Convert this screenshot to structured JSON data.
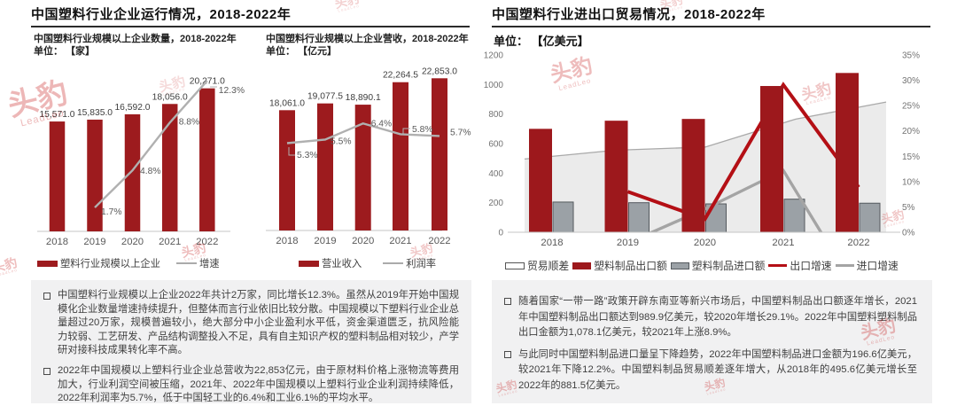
{
  "left_panel": {
    "title": "中国塑料行业企业运行情况，2018-2022年",
    "bullets": [
      "中国塑料行业规模以上企业2022年共计2万家，同比增长12.3%。虽然从2019年开始中国规模化企业数量增速持续提升，但整体而言行业依旧比较分散。中国规模以下塑料行业企业总量超过20万家，规模普遍较小，绝大部分中小企业盈利水平低，资金渠道匮乏，抗风险能力较弱、工艺研发、产品结构调整投入不足，具有自主知识产权的塑料制品相对较少，产学研对接科技成果转化率不高。",
      "2022年中国规模以上塑料行业企业总营收为22,853亿元，由于原材料价格上涨物流等费用加大，行业利润空间被压缩，2021年、2022年中国规模以上塑料行业企业利润持续降低，2022年利润率为5.7%，低于中国轻工业的6.4%和工业6.1%的平均水平。"
    ]
  },
  "right_panel": {
    "title": "中国塑料行业进出口贸易情况，2018-2022年",
    "bullets": [
      "随着国家“一带一路”政策开辟东南亚等新兴市场后，中国塑料制品出口额逐年增长，2021年中国塑料制品出口额达到989.9亿美元，较2020年增长29.1%。2022年中国塑料塑料制品出口金额为1,078.1亿美元，较2021年上涨8.9%。",
      "与此同时中国塑料制品进口量呈下降趋势，2022年中国塑料制品进口金额为196.6亿美元，较2021年下降12.2%。中国塑料制品贸易顺差逐年增大，从2018年的495.6亿美元增长至2022年的881.5亿美元。"
    ]
  },
  "chart_data": [
    {
      "type": "bar",
      "title": "中国塑料行业规模以上企业数量，2018-2022年",
      "unit": "单位： 【家】",
      "categories": [
        "2018",
        "2019",
        "2020",
        "2021",
        "2022"
      ],
      "series": [
        {
          "name": "塑料行业规模以上企业",
          "type": "bar",
          "values": [
            15571.0,
            15835.0,
            16592.0,
            18056.0,
            20271.0
          ],
          "labels": [
            "15,571.0",
            "15,835.0",
            "16,592.0",
            "18,056.0",
            "20,271.0"
          ]
        },
        {
          "name": "增速",
          "type": "line",
          "axis": "right",
          "values": [
            null,
            1.7,
            4.8,
            8.8,
            12.3
          ],
          "labels": [
            null,
            "1.7%",
            "4.8%",
            "8.8%",
            "12.3%"
          ]
        }
      ]
    },
    {
      "type": "bar",
      "title": "中国塑料行业规模以上企业营收，2018-2022年",
      "unit": "单位： 【亿元】",
      "categories": [
        "2018",
        "2019",
        "2020",
        "2021",
        "2022"
      ],
      "series": [
        {
          "name": "营业收入",
          "type": "bar",
          "values": [
            18061.0,
            19077.5,
            18890.1,
            22264.5,
            22853.0
          ],
          "labels": [
            "18,061.0",
            "19,077.5",
            "18,890.1",
            "22,264.5",
            "22,853.0"
          ]
        },
        {
          "name": "利润率",
          "type": "line",
          "axis": "right",
          "values": [
            5.3,
            5.5,
            6.4,
            5.8,
            5.7
          ],
          "labels": [
            "5.3%",
            "5.5%",
            "6.4%",
            "5.8%",
            "5.7%"
          ]
        }
      ]
    },
    {
      "type": "combo",
      "unit": "单位： 【亿美元】",
      "categories": [
        "2018",
        "2019",
        "2020",
        "2021",
        "2022"
      ],
      "left_axis": {
        "min": 0,
        "max": 1200,
        "step": 200
      },
      "right_axis": {
        "min": 0,
        "max": 35,
        "step": 5,
        "suffix": "%"
      },
      "series": [
        {
          "name": "贸易顺差",
          "type": "area",
          "values": [
            495.6,
            555,
            577,
            766,
            881.5
          ]
        },
        {
          "name": "塑料制品出口额",
          "type": "bar",
          "values": [
            700,
            755,
            767,
            989.9,
            1078.1
          ]
        },
        {
          "name": "塑料制品进口额",
          "type": "bar",
          "values": [
            204.4,
            200,
            192,
            223.9,
            196.6
          ]
        },
        {
          "name": "出口增速",
          "type": "line",
          "axis": "right",
          "values": [
            null,
            8.0,
            2.6,
            29.1,
            8.9
          ]
        },
        {
          "name": "进口增速",
          "type": "line",
          "axis": "right",
          "values": [
            null,
            -2.1,
            4.6,
            12.2,
            -12.2
          ]
        }
      ]
    }
  ],
  "watermark": {
    "text": "头豹",
    "sub": "LeadLeo"
  }
}
